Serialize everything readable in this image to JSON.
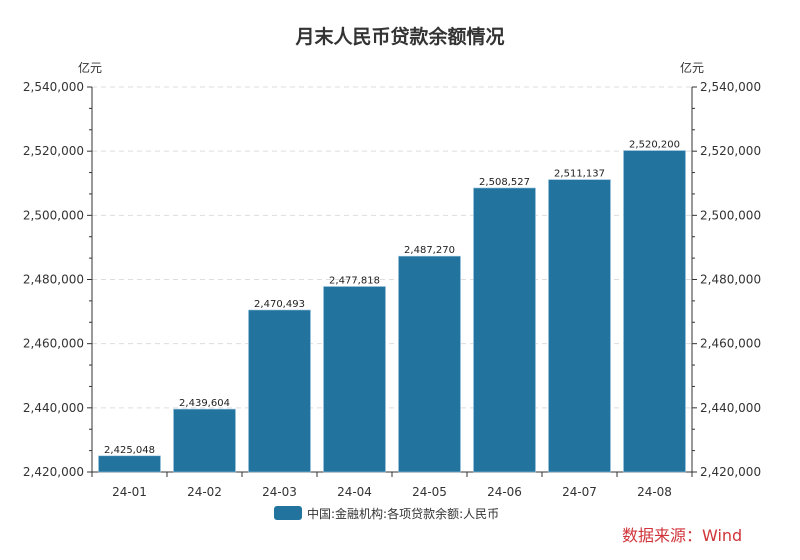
{
  "chart_data": {
    "type": "bar",
    "title": "月末人民币贷款余额情况",
    "categories": [
      "24-01",
      "24-02",
      "24-03",
      "24-04",
      "24-05",
      "24-06",
      "24-07",
      "24-08"
    ],
    "series": [
      {
        "name": "中国:金融机构:各项贷款余额:人民币",
        "values": [
          2425048,
          2439604,
          2470493,
          2477818,
          2487270,
          2508527,
          2511137,
          2520200
        ],
        "color": "#22739e"
      }
    ],
    "data_labels": [
      "2,425,048",
      "2,439,604",
      "2,470,493",
      "2,477,818",
      "2,487,270",
      "2,508,527",
      "2,511,137",
      "2,520,200"
    ],
    "y_unit_left": "亿元",
    "y_unit_right": "亿元",
    "ylim": [
      2420000,
      2540000
    ],
    "yticks": [
      "2,420,000",
      "2,440,000",
      "2,460,000",
      "2,480,000",
      "2,500,000",
      "2,520,000",
      "2,540,000"
    ],
    "grid": true,
    "legend_position": "bottom"
  },
  "source": "数据来源：Wind"
}
